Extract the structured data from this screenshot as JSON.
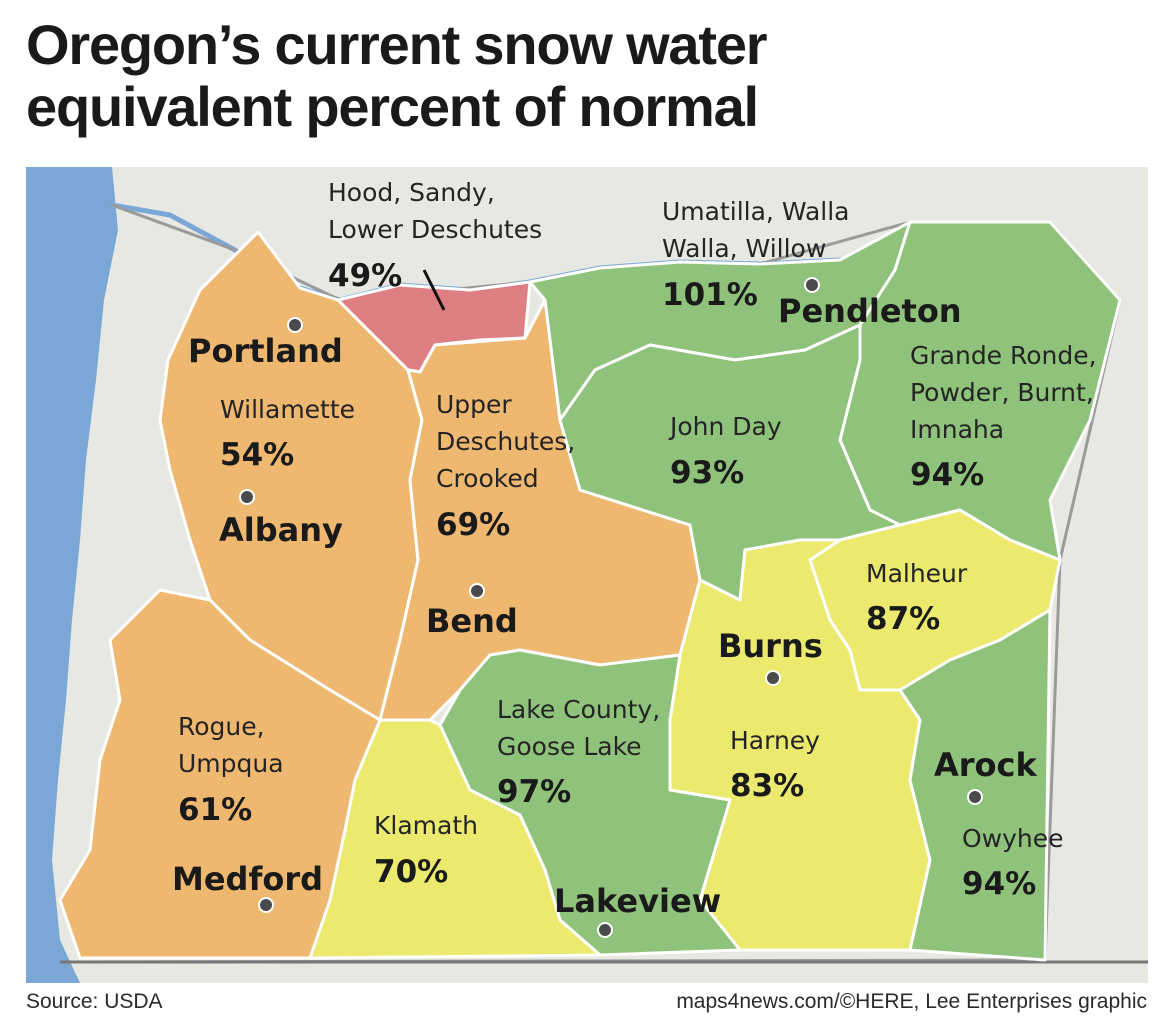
{
  "title": {
    "line1": "Oregon’s current snow water",
    "line2": "equivalent percent of normal"
  },
  "colors": {
    "ocean": "#7aa7d6",
    "land": "#e8e8e2",
    "below_normal_severe": "#de8083",
    "below_normal": "#efb871",
    "near_below_normal": "#ecea6e",
    "near_normal": "#8fc27a",
    "boundary": "#ffffff"
  },
  "regions": [
    {
      "name": "Hood, Sandy, Lower Deschutes",
      "label_lines": [
        "Hood, Sandy,",
        "Lower Deschutes"
      ],
      "percent": "49%"
    },
    {
      "name": "Umatilla, Walla Walla, Willow",
      "label_lines": [
        "Umatilla, Walla",
        "Walla, Willow"
      ],
      "percent": "101%"
    },
    {
      "name": "Grande Ronde, Powder, Burnt, Imnaha",
      "label_lines": [
        "Grande Ronde,",
        "Powder, Burnt,",
        "Imnaha"
      ],
      "percent": "94%"
    },
    {
      "name": "Willamette",
      "label_lines": [
        "Willamette"
      ],
      "percent": "54%"
    },
    {
      "name": "Upper Deschutes, Crooked",
      "label_lines": [
        "Upper",
        "Deschutes,",
        "Crooked"
      ],
      "percent": "69%"
    },
    {
      "name": "John Day",
      "label_lines": [
        "John Day"
      ],
      "percent": "93%"
    },
    {
      "name": "Malheur",
      "label_lines": [
        "Malheur"
      ],
      "percent": "87%"
    },
    {
      "name": "Harney",
      "label_lines": [
        "Harney"
      ],
      "percent": "83%"
    },
    {
      "name": "Lake County, Goose Lake",
      "label_lines": [
        "Lake County,",
        "Goose Lake"
      ],
      "percent": "97%"
    },
    {
      "name": "Rogue, Umpqua",
      "label_lines": [
        "Rogue,",
        "Umpqua"
      ],
      "percent": "61%"
    },
    {
      "name": "Klamath",
      "label_lines": [
        "Klamath"
      ],
      "percent": "70%"
    },
    {
      "name": "Owyhee",
      "label_lines": [
        "Owyhee"
      ],
      "percent": "94%"
    }
  ],
  "cities": [
    "Portland",
    "Pendleton",
    "Albany",
    "Bend",
    "Burns",
    "Arock",
    "Medford",
    "Lakeview"
  ],
  "footer": {
    "source": "Source: USDA",
    "credit": "maps4news.com/©HERE, Lee Enterprises graphic"
  }
}
